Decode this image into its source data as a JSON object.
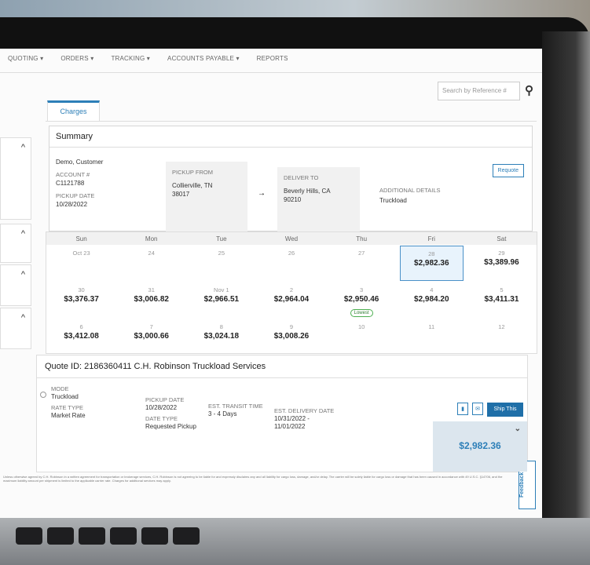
{
  "nav": {
    "items": [
      "QUOTING ▾",
      "ORDERS ▾",
      "TRACKING ▾",
      "ACCOUNTS PAYABLE ▾",
      "REPORTS"
    ]
  },
  "search": {
    "placeholder": "Search by Reference #",
    "icon": "search-icon",
    "user_icon": "user-circle-icon"
  },
  "tabs": [
    {
      "label": "Charges",
      "active": true
    }
  ],
  "summary": {
    "title": "Summary",
    "customer": "Demo, Customer",
    "account_label": "ACCOUNT #",
    "account": "C1121788",
    "pickup_date_label": "PICKUP DATE",
    "pickup_date": "10/28/2022",
    "pickup_from_label": "PICKUP FROM",
    "pickup_from_city": "Collierville, TN",
    "pickup_from_zip": "38017",
    "arrow": "→",
    "deliver_to_label": "DELIVER TO",
    "deliver_to_city": "Beverly Hills, CA",
    "deliver_to_zip": "90210",
    "additional_label": "ADDITIONAL DETAILS",
    "additional": "Truckload",
    "requote_label": "Requote"
  },
  "calendar": {
    "days": [
      "Sun",
      "Mon",
      "Tue",
      "Wed",
      "Thu",
      "Fri",
      "Sat"
    ],
    "cells": [
      {
        "d": "Oct 23"
      },
      {
        "d": "24"
      },
      {
        "d": "25"
      },
      {
        "d": "26"
      },
      {
        "d": "27"
      },
      {
        "d": "28",
        "p": "$2,982.36",
        "selected": true
      },
      {
        "d": "29",
        "p": "$3,389.96"
      },
      {
        "d": "30",
        "p": "$3,376.37"
      },
      {
        "d": "31",
        "p": "$3,006.82"
      },
      {
        "d": "Nov 1",
        "p": "$2,966.51"
      },
      {
        "d": "2",
        "p": "$2,964.04"
      },
      {
        "d": "3",
        "p": "$2,950.46",
        "badge": "Lowest"
      },
      {
        "d": "4",
        "p": "$2,984.20"
      },
      {
        "d": "5",
        "p": "$3,411.31"
      },
      {
        "d": "6",
        "p": "$3,412.08"
      },
      {
        "d": "7",
        "p": "$3,000.66"
      },
      {
        "d": "8",
        "p": "$3,024.18"
      },
      {
        "d": "9",
        "p": "$3,008.26"
      },
      {
        "d": "10"
      },
      {
        "d": "11"
      },
      {
        "d": "12"
      }
    ]
  },
  "quote": {
    "title": "Quote ID: 2186360411  C.H. Robinson Truckload Services",
    "mode_label": "MODE",
    "mode": "Truckload",
    "rate_type_label": "RATE TYPE",
    "rate_type": "Market Rate",
    "pickup_date_label": "PICKUP DATE",
    "pickup_date": "10/28/2022",
    "date_type_label": "DATE TYPE",
    "date_type": "Requested Pickup",
    "transit_label": "EST. TRANSIT TIME",
    "transit": "3 - 4 Days",
    "delivery_label": "EST. DELIVERY DATE",
    "delivery_1": "10/31/2022 -",
    "delivery_2": "11/01/2022",
    "ship_label": "Ship This",
    "price": "$2,982.36",
    "expand": "⌄"
  },
  "disclaimer": "Unless otherwise agreed by C.H. Robinson in a written agreement for transportation or brokerage services, C.H. Robinson is not agreeing to be liable for and expressly disclaims any and all liability for cargo loss, damage, and/or delay. The carrier will be solely liable for cargo loss or damage that has been caused in accordance with 49 U.S.C. §14706, and the maximum liability amount per shipment is limited to the applicable carrier rate. Charges for additional services may apply.",
  "feedback": "Feedback",
  "colors": {
    "accent": "#2d7fb8",
    "lowest": "#4caf50",
    "selected_bg": "#e8f3fc"
  }
}
